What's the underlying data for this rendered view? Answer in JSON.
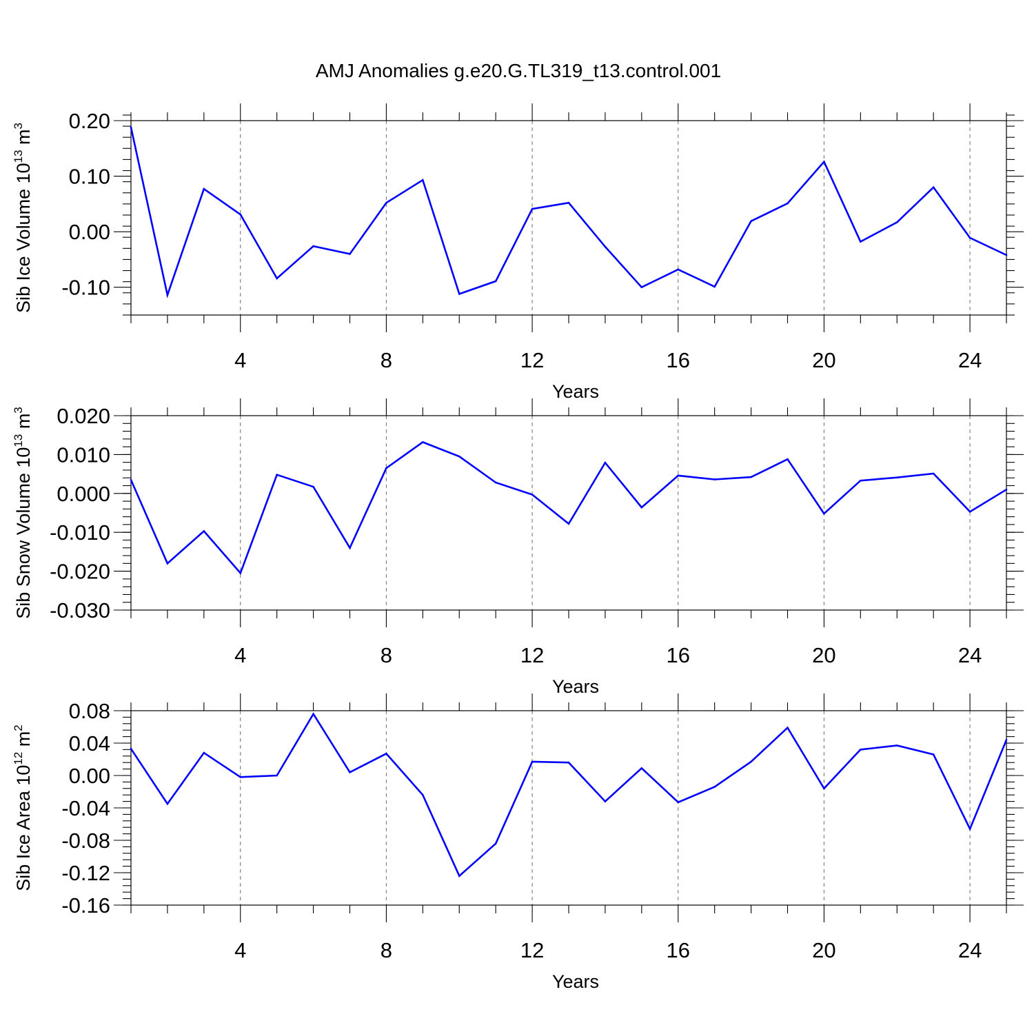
{
  "title": "AMJ Anomalies g.e20.G.TL319_t13.control.001",
  "colors": {
    "series": "#0000ff",
    "axis": "#000000",
    "grid": "#777777"
  },
  "chart_data": [
    {
      "type": "line",
      "ylabel": "Sib Ice Volume 10",
      "ylabel_exp": "13",
      "ylabel_unit": " m",
      "ylabel_unit_exp": "3",
      "xlabel": "Years",
      "xlim": [
        1,
        25
      ],
      "ylim": [
        -0.15,
        0.2
      ],
      "yticks": [
        0.2,
        0.1,
        0.0,
        -0.1
      ],
      "ytick_labels": [
        "0.20",
        "0.10",
        "0.00",
        "-0.10"
      ],
      "yminor_step": 0.02,
      "xticks": [
        4,
        8,
        12,
        16,
        20,
        24
      ],
      "xtick_labels": [
        "4",
        "8",
        "12",
        "16",
        "20",
        "24"
      ],
      "grid_x": true,
      "x": [
        1,
        2,
        3,
        4,
        5,
        6,
        7,
        8,
        9,
        10,
        11,
        12,
        13,
        14,
        15,
        16,
        17,
        18,
        19,
        20,
        21,
        22,
        23,
        24,
        25
      ],
      "values": [
        0.188,
        -0.114,
        0.077,
        0.031,
        -0.084,
        -0.026,
        -0.04,
        0.052,
        0.093,
        -0.112,
        -0.089,
        0.041,
        0.052,
        -0.027,
        -0.1,
        -0.068,
        -0.099,
        0.019,
        0.051,
        0.126,
        -0.018,
        0.017,
        0.08,
        -0.011,
        -0.042
      ]
    },
    {
      "type": "line",
      "ylabel": "Sib Snow Volume 10",
      "ylabel_exp": "13",
      "ylabel_unit": " m",
      "ylabel_unit_exp": "3",
      "xlabel": "Years",
      "xlim": [
        1,
        25
      ],
      "ylim": [
        -0.03,
        0.02
      ],
      "yticks": [
        0.02,
        0.01,
        0.0,
        -0.01,
        -0.02,
        -0.03
      ],
      "ytick_labels": [
        "0.020",
        "0.010",
        "0.000",
        "-0.010",
        "-0.020",
        "-0.030"
      ],
      "yminor_step": 0.002,
      "xticks": [
        4,
        8,
        12,
        16,
        20,
        24
      ],
      "xtick_labels": [
        "4",
        "8",
        "12",
        "16",
        "20",
        "24"
      ],
      "grid_x": true,
      "x": [
        1,
        2,
        3,
        4,
        5,
        6,
        7,
        8,
        9,
        10,
        11,
        12,
        13,
        14,
        15,
        16,
        17,
        18,
        19,
        20,
        21,
        22,
        23,
        24,
        25
      ],
      "values": [
        0.0035,
        -0.018,
        -0.0097,
        -0.0205,
        0.0048,
        0.0017,
        -0.014,
        0.0065,
        0.0132,
        0.0095,
        0.0028,
        -0.0003,
        -0.0078,
        0.0079,
        -0.0036,
        0.0046,
        0.0036,
        0.0042,
        0.0088,
        -0.0052,
        0.0033,
        0.0041,
        0.0051,
        -0.0047,
        0.001
      ]
    },
    {
      "type": "line",
      "ylabel": "Sib Ice Area 10",
      "ylabel_exp": "12",
      "ylabel_unit": " m",
      "ylabel_unit_exp": "2",
      "xlabel": "Years",
      "xlim": [
        1,
        25
      ],
      "ylim": [
        -0.16,
        0.08
      ],
      "yticks": [
        0.08,
        0.04,
        0.0,
        -0.04,
        -0.08,
        -0.12,
        -0.16
      ],
      "ytick_labels": [
        "0.08",
        "0.04",
        "0.00",
        "-0.04",
        "-0.08",
        "-0.12",
        "-0.16"
      ],
      "yminor_step": 0.008,
      "xticks": [
        4,
        8,
        12,
        16,
        20,
        24
      ],
      "xtick_labels": [
        "4",
        "8",
        "12",
        "16",
        "20",
        "24"
      ],
      "grid_x": true,
      "x": [
        1,
        2,
        3,
        4,
        5,
        6,
        7,
        8,
        9,
        10,
        11,
        12,
        13,
        14,
        15,
        16,
        17,
        18,
        19,
        20,
        21,
        22,
        23,
        24,
        25
      ],
      "values": [
        0.033,
        -0.035,
        0.028,
        -0.002,
        0.0,
        0.076,
        0.004,
        0.027,
        -0.024,
        -0.124,
        -0.084,
        0.017,
        0.016,
        -0.032,
        0.009,
        -0.033,
        -0.014,
        0.017,
        0.059,
        -0.016,
        0.032,
        0.037,
        0.026,
        -0.066,
        0.044
      ]
    }
  ]
}
